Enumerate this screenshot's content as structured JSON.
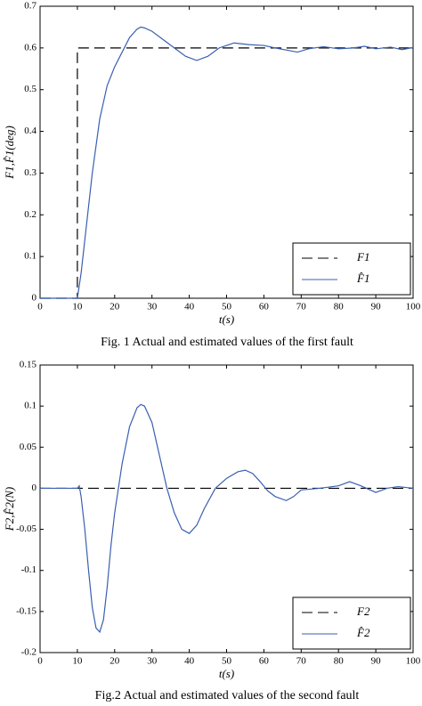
{
  "chart_data": [
    {
      "type": "line",
      "ylabel": "F1,F̂1(deg)",
      "xlabel": "t(s)",
      "caption": "Fig. 1 Actual and estimated values of the first fault",
      "xlim": [
        0,
        100
      ],
      "xticks": [
        0,
        10,
        20,
        30,
        40,
        50,
        60,
        70,
        80,
        90,
        100
      ],
      "ylim": [
        0,
        0.7
      ],
      "yticks": [
        0,
        0.1,
        0.2,
        0.3,
        0.4,
        0.5,
        0.6,
        0.7
      ],
      "legend": "lower right",
      "series": [
        {
          "name": "F1",
          "color": "#000000",
          "style": "dashed",
          "x": [
            0,
            10,
            10,
            100
          ],
          "values": [
            0,
            0,
            0.6,
            0.6
          ]
        },
        {
          "name": "F̂1",
          "color": "#3a5fb0",
          "style": "solid",
          "x": [
            0,
            10,
            11,
            12,
            14,
            16,
            18,
            20,
            22,
            24,
            26,
            27,
            28,
            30,
            33,
            36,
            39,
            42,
            45,
            48,
            52,
            56,
            60,
            63,
            66,
            69,
            72,
            76,
            80,
            84,
            87,
            90,
            94,
            97,
            100
          ],
          "values": [
            0,
            0,
            0.06,
            0.14,
            0.3,
            0.43,
            0.51,
            0.555,
            0.59,
            0.625,
            0.645,
            0.65,
            0.648,
            0.64,
            0.62,
            0.6,
            0.58,
            0.57,
            0.58,
            0.6,
            0.612,
            0.608,
            0.606,
            0.6,
            0.595,
            0.59,
            0.598,
            0.603,
            0.598,
            0.6,
            0.604,
            0.598,
            0.602,
            0.596,
            0.601
          ]
        }
      ]
    },
    {
      "type": "line",
      "ylabel": "F2,F̂2(N)",
      "xlabel": "t(s)",
      "caption": "Fig.2 Actual and estimated values of the second fault",
      "xlim": [
        0,
        100
      ],
      "xticks": [
        0,
        10,
        20,
        30,
        40,
        50,
        60,
        70,
        80,
        90,
        100
      ],
      "ylim": [
        -0.2,
        0.15
      ],
      "yticks": [
        -0.2,
        -0.15,
        -0.1,
        -0.05,
        0,
        0.05,
        0.1,
        0.15
      ],
      "legend": "lower right",
      "series": [
        {
          "name": "F2",
          "color": "#000000",
          "style": "dashed",
          "x": [
            0,
            100
          ],
          "values": [
            0,
            0
          ]
        },
        {
          "name": "F̂2",
          "color": "#3a5fb0",
          "style": "solid",
          "x": [
            0,
            10,
            10.5,
            11,
            12,
            13,
            14,
            15,
            16,
            17,
            18,
            19,
            20,
            21,
            22,
            24,
            26,
            27,
            28,
            30,
            32,
            34,
            36,
            38,
            40,
            42,
            44,
            47,
            50,
            53,
            55,
            57,
            59,
            61,
            63,
            66,
            68,
            70,
            75,
            80,
            83,
            86,
            90,
            93,
            96,
            100
          ],
          "values": [
            0,
            0,
            0.003,
            -0.01,
            -0.05,
            -0.1,
            -0.145,
            -0.17,
            -0.175,
            -0.16,
            -0.12,
            -0.07,
            -0.03,
            0,
            0.03,
            0.075,
            0.098,
            0.102,
            0.1,
            0.08,
            0.04,
            0,
            -0.03,
            -0.05,
            -0.055,
            -0.045,
            -0.025,
            0,
            0.012,
            0.02,
            0.022,
            0.018,
            0.008,
            -0.003,
            -0.01,
            -0.015,
            -0.01,
            -0.002,
            0,
            0.003,
            0.008,
            0.003,
            -0.005,
            0,
            0.002,
            0
          ]
        }
      ]
    }
  ]
}
